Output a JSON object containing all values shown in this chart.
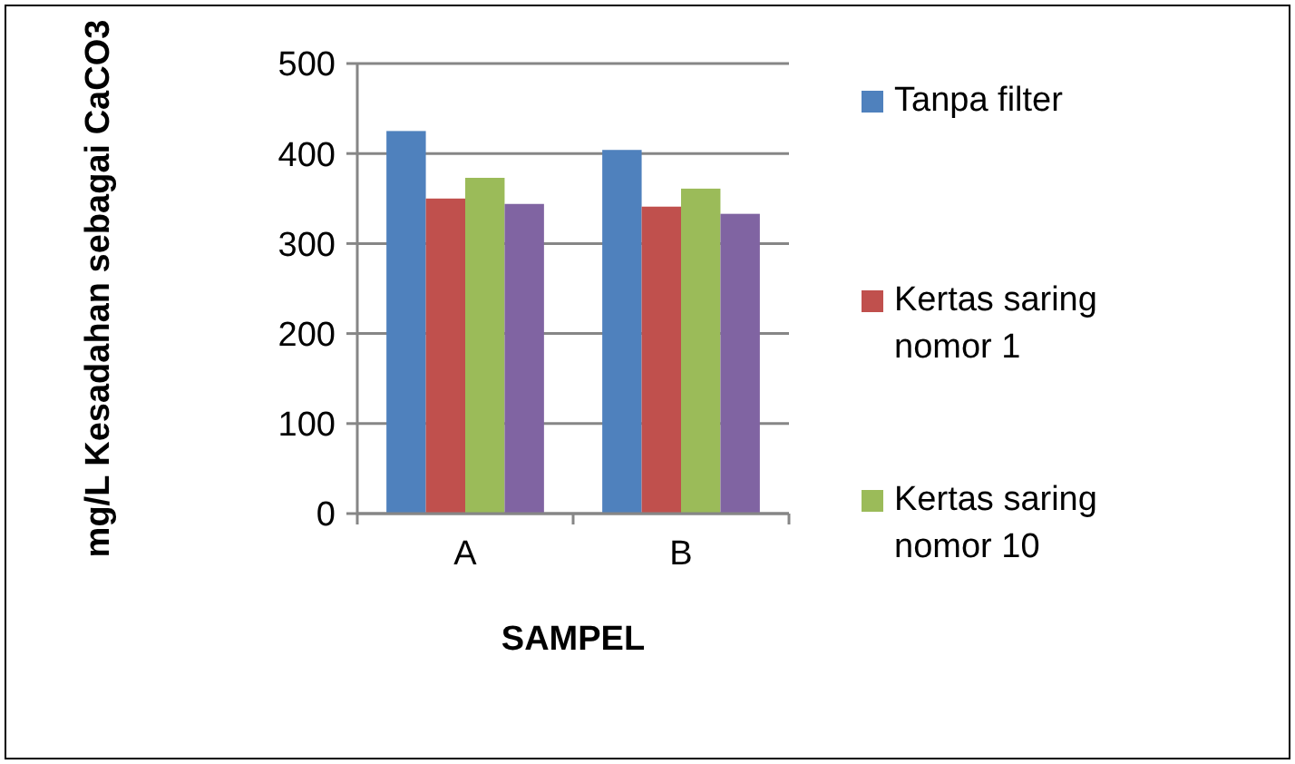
{
  "chart_data": {
    "type": "bar",
    "xlabel": "SAMPEL",
    "ylabel": "mg/L Kesadahan sebagai CaCO3",
    "categories": [
      "A",
      "B"
    ],
    "series": [
      {
        "name": "Tanpa filter",
        "color": "#4f81bd",
        "values": [
          425,
          404
        ]
      },
      {
        "name": "Kertas saring nomor 1",
        "color": "#c0504d",
        "values": [
          350,
          341
        ]
      },
      {
        "name": "Kertas saring nomor 10",
        "color": "#9bbb59",
        "values": [
          373,
          361
        ]
      },
      {
        "color": "#8064a2",
        "values": [
          344,
          333
        ]
      }
    ],
    "ylim": [
      0,
      500
    ],
    "yticks": [
      0,
      100,
      200,
      300,
      400,
      500
    ],
    "grid": "y",
    "legend": "right"
  }
}
